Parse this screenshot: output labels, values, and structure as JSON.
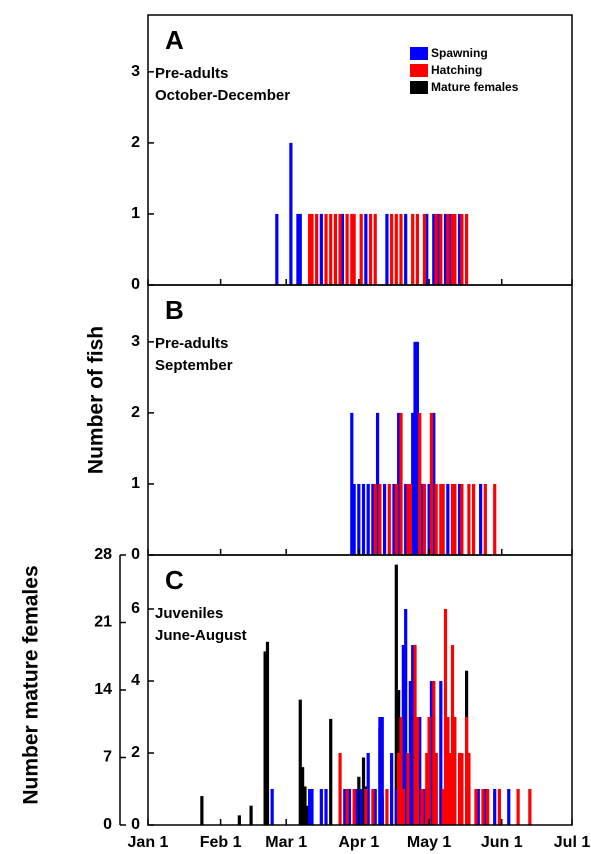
{
  "chart_data": [
    {
      "type": "bar",
      "title": "A",
      "annotations": [
        "Pre-adults",
        "October-December"
      ],
      "legend": "upper right",
      "ylim": [
        0,
        3.8
      ],
      "yticks": [
        0,
        1,
        2,
        3
      ],
      "series": [
        {
          "name": "Spawning",
          "color": "#0000ff",
          "x": [
            56,
            62,
            65,
            66,
            75,
            84,
            94,
            103,
            111,
            120,
            123,
            125,
            128,
            130,
            134
          ],
          "values": [
            1,
            2,
            1,
            1,
            1,
            1,
            1,
            1,
            1,
            1,
            1,
            1,
            1,
            1,
            1
          ]
        },
        {
          "name": "Hatching",
          "color": "#ff0000",
          "x": [
            70,
            71,
            73,
            77,
            79,
            81,
            83,
            86,
            88,
            89,
            92,
            96,
            98,
            105,
            107,
            109,
            114,
            116,
            119,
            124,
            126,
            129,
            131,
            132,
            135,
            137
          ],
          "values": [
            1,
            1,
            1,
            1,
            1,
            1,
            1,
            1,
            1,
            1,
            1,
            1,
            1,
            1,
            1,
            1,
            1,
            1,
            1,
            1,
            1,
            1,
            1,
            1,
            1,
            1
          ]
        },
        {
          "name": "Mature females",
          "color": "#000000",
          "x": [],
          "values": []
        }
      ]
    },
    {
      "type": "bar",
      "title": "B",
      "annotations": [
        "Pre-adults",
        "September"
      ],
      "ylabel": "Number of fish",
      "ylim": [
        0,
        3.8
      ],
      "yticks": [
        0,
        1,
        2,
        3
      ],
      "series": [
        {
          "color": "#0000ff",
          "x": [
            88,
            89,
            91,
            93,
            95,
            97,
            99,
            102,
            106,
            108,
            111,
            114,
            115,
            116,
            118,
            121,
            123,
            129,
            134,
            143
          ],
          "values": [
            2,
            1,
            1,
            1,
            1,
            1,
            2,
            1,
            1,
            2,
            1,
            2,
            3,
            3,
            1,
            1,
            2,
            1,
            1,
            1
          ]
        },
        {
          "color": "#ff0000",
          "x": [
            98,
            100,
            104,
            107,
            109,
            112,
            113,
            117,
            119,
            122,
            124,
            126,
            127,
            131,
            132,
            135,
            138,
            140,
            145,
            149
          ],
          "values": [
            1,
            1,
            1,
            1,
            2,
            1,
            1,
            2,
            1,
            2,
            1,
            1,
            1,
            1,
            1,
            1,
            1,
            1,
            1,
            1
          ]
        }
      ]
    },
    {
      "type": "bar",
      "title": "C",
      "annotations": [
        "Juveniles",
        "June-August"
      ],
      "y2label": "Number mature females",
      "ylim": [
        0,
        7.5
      ],
      "yticks": [
        0,
        2,
        4,
        6
      ],
      "y2lim": [
        0,
        28
      ],
      "y2ticks": [
        0,
        7,
        14,
        21,
        28
      ],
      "xlim": [
        1,
        182
      ],
      "xticks": [
        {
          "value": 1,
          "label": "Jan 1"
        },
        {
          "value": 32,
          "label": "Feb 1"
        },
        {
          "value": 60,
          "label": "Mar 1"
        },
        {
          "value": 91,
          "label": "Apr 1"
        },
        {
          "value": 121,
          "label": "May 1"
        },
        {
          "value": 152,
          "label": "Jun 1"
        },
        {
          "value": 182,
          "label": "Jul 1"
        }
      ],
      "series": [
        {
          "color": "#000000",
          "axis": "y2",
          "x": [
            24,
            40,
            45,
            51,
            52,
            66,
            67,
            68,
            69,
            79,
            89,
            91,
            93,
            94,
            100,
            101,
            107,
            108,
            109,
            110,
            113,
            114,
            137
          ],
          "values": [
            3,
            1,
            2,
            18,
            19,
            13,
            6,
            4,
            2,
            11,
            2,
            5,
            7,
            4,
            10,
            3,
            27,
            14,
            3,
            1,
            1,
            1,
            16
          ]
        },
        {
          "color": "#0000ff",
          "x": [
            54,
            70,
            71,
            75,
            77,
            85,
            87,
            90,
            92,
            95,
            98,
            100,
            101,
            105,
            107,
            110,
            111,
            113,
            114,
            116,
            117,
            119,
            122,
            124,
            126,
            129,
            130,
            132,
            135,
            138,
            142,
            145,
            149,
            155
          ],
          "values": [
            1,
            1,
            1,
            1,
            1,
            1,
            1,
            1,
            1,
            2,
            1,
            3,
            3,
            2,
            1,
            5,
            6,
            4,
            5,
            3,
            3,
            1,
            4,
            2,
            4,
            3,
            1,
            2,
            1,
            1,
            1,
            1,
            1,
            1
          ]
        },
        {
          "color": "#ff0000",
          "x": [
            83,
            86,
            89,
            94,
            97,
            103,
            108,
            109,
            110,
            112,
            115,
            116,
            118,
            120,
            121,
            123,
            124,
            127,
            128,
            129,
            130,
            131,
            132,
            134,
            135,
            137,
            138,
            141,
            144,
            146,
            151,
            159,
            164
          ],
          "values": [
            2,
            1,
            1,
            1,
            1,
            1,
            2,
            3,
            1,
            2,
            5,
            3,
            1,
            2,
            3,
            4,
            2,
            1,
            6,
            3,
            2,
            5,
            3,
            2,
            2,
            3,
            2,
            1,
            1,
            1,
            1,
            1,
            1
          ]
        }
      ]
    }
  ]
}
